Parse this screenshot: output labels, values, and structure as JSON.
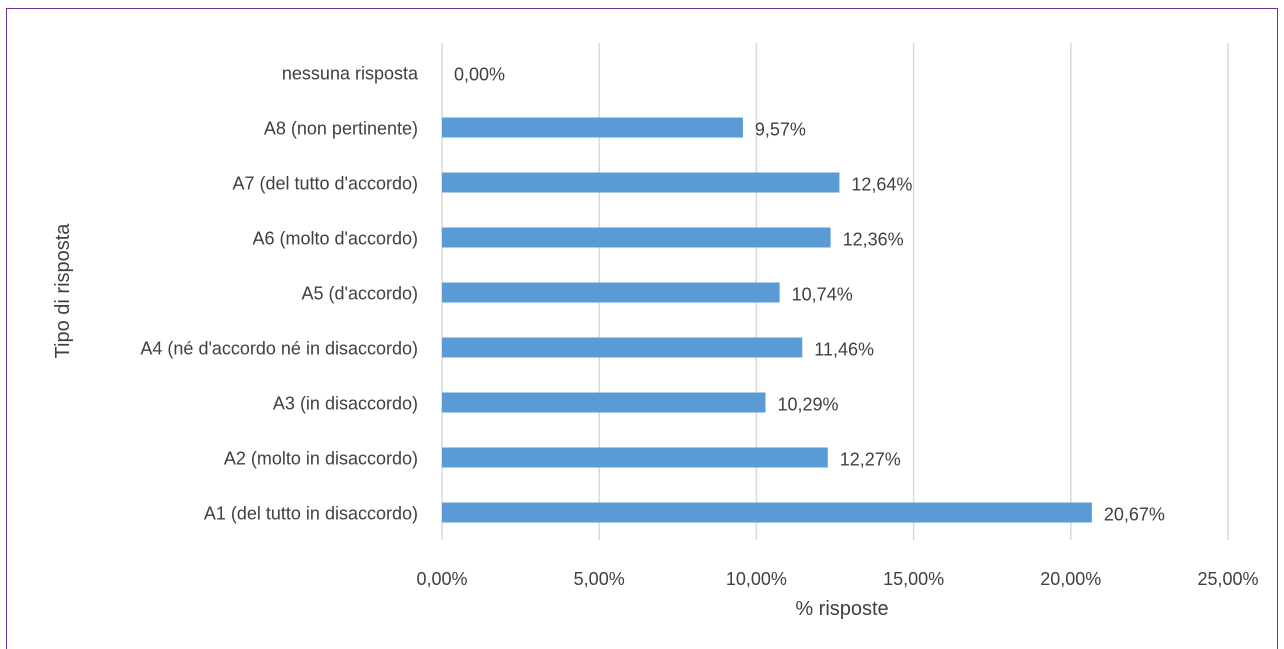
{
  "chart_data": {
    "type": "bar",
    "orientation": "horizontal",
    "title": "",
    "xlabel": "% risposte",
    "ylabel": "Tipo di risposta",
    "categories": [
      "A1 (del tutto in disaccordo)",
      "A2 (molto in disaccordo)",
      "A3 (in disaccordo)",
      "A4 (né d'accordo né in disaccordo)",
      "A5 (d'accordo)",
      "A6 (molto d'accordo)",
      "A7 (del tutto d'accordo)",
      "A8 (non pertinente)",
      "nessuna risposta"
    ],
    "values": [
      20.67,
      12.27,
      10.29,
      11.46,
      10.74,
      12.36,
      12.64,
      9.57,
      0.0
    ],
    "data_labels": [
      "20,67%",
      "12,27%",
      "10,29%",
      "11,46%",
      "10,74%",
      "12,36%",
      "12,64%",
      "9,57%",
      "0,00%"
    ],
    "xlim": [
      0,
      25
    ],
    "x_ticks": [
      0,
      5,
      10,
      15,
      20,
      25
    ],
    "x_tick_labels": [
      "0,00%",
      "5,00%",
      "10,00%",
      "15,00%",
      "20,00%",
      "25,00%"
    ],
    "grid": true,
    "legend": "none",
    "bar_color": "#5b9bd5",
    "grid_color": "#d9d9d9",
    "border_color": "#7030a0"
  }
}
